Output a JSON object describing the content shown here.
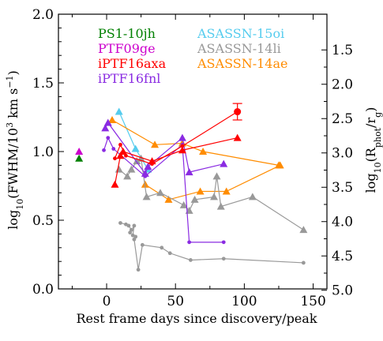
{
  "chart_data": {
    "type": "scatter",
    "xlabel": "Rest frame days since discovery/peak",
    "ylabel": "log10(FWHM/10^3 km s^-1)",
    "ylabel_right": "log10(R_phot/r_g)",
    "xlim": [
      -35,
      160
    ],
    "ylim": [
      0.0,
      2.0
    ],
    "x_ticks": [
      0,
      50,
      100,
      150
    ],
    "y_ticks": [
      0.0,
      0.5,
      1.0,
      1.5,
      2.0
    ],
    "y_tick_labels": [
      "0.0",
      "0.5",
      "1.0",
      "1.5",
      "2.0"
    ],
    "right_ticks": [
      {
        "y": 1.74,
        "label": "1.5"
      },
      {
        "y": 1.49,
        "label": "2.0"
      },
      {
        "y": 1.24,
        "label": "2.5"
      },
      {
        "y": 0.99,
        "label": "3.0"
      },
      {
        "y": 0.74,
        "label": "3.5"
      },
      {
        "y": 0.49,
        "label": "4.0"
      },
      {
        "y": 0.24,
        "label": "4.5"
      },
      {
        "y": -0.01,
        "label": "5.0"
      }
    ],
    "legend": [
      {
        "name": "PS1-10jh",
        "color": "#008000"
      },
      {
        "name": "PTF09ge",
        "color": "#cc00cc"
      },
      {
        "name": "iPTF16axa",
        "color": "#ff0000"
      },
      {
        "name": "iPTF16fnl",
        "color": "#8a2be2"
      },
      {
        "name": "ASASSN-15oi",
        "color": "#55ccee"
      },
      {
        "name": "ASASSN-14li",
        "color": "#999999"
      },
      {
        "name": "ASASSN-14ae",
        "color": "#ff8c00"
      }
    ],
    "series": [
      {
        "name": "PS1-10jh",
        "color": "#008000",
        "marker": "triangle",
        "connect": false,
        "points": [
          {
            "x": -20,
            "y": 0.95
          }
        ]
      },
      {
        "name": "PTF09ge",
        "color": "#cc00cc",
        "marker": "triangle",
        "connect": false,
        "points": [
          {
            "x": -20,
            "y": 1.0
          }
        ]
      },
      {
        "name": "ASASSN-15oi",
        "color": "#55ccee",
        "marker": "triangle",
        "connect": true,
        "points": [
          {
            "x": 9,
            "y": 1.29
          },
          {
            "x": 21,
            "y": 1.02
          },
          {
            "x": 30,
            "y": 0.87
          }
        ]
      },
      {
        "name": "ASASSN-14ae",
        "color": "#ff8c00",
        "marker": "triangle",
        "connect": true,
        "points": [
          {
            "x": 4,
            "y": 1.23
          },
          {
            "x": 35,
            "y": 1.05
          },
          {
            "x": 55,
            "y": 1.06
          },
          {
            "x": 70,
            "y": 1.0
          },
          {
            "x": 125,
            "y": 0.9
          }
        ]
      },
      {
        "name": "ASASSN-14ae (late)",
        "color": "#ff8c00",
        "marker": "triangle",
        "connect": true,
        "points": [
          {
            "x": 28,
            "y": 0.76
          },
          {
            "x": 45,
            "y": 0.65
          },
          {
            "x": 68,
            "y": 0.71
          },
          {
            "x": 87,
            "y": 0.71
          },
          {
            "x": 126,
            "y": 0.9
          }
        ]
      },
      {
        "name": "ASASSN-14li",
        "color": "#999999",
        "marker": "triangle",
        "connect": true,
        "points": [
          {
            "x": 9,
            "y": 0.87
          },
          {
            "x": 15,
            "y": 0.82
          },
          {
            "x": 18,
            "y": 0.87
          },
          {
            "x": 22,
            "y": 0.93
          },
          {
            "x": 25,
            "y": 0.95
          },
          {
            "x": 29,
            "y": 0.67
          },
          {
            "x": 39,
            "y": 0.7
          },
          {
            "x": 56,
            "y": 0.61
          },
          {
            "x": 60,
            "y": 0.57
          },
          {
            "x": 64,
            "y": 0.65
          },
          {
            "x": 78,
            "y": 0.67
          },
          {
            "x": 80,
            "y": 0.82
          },
          {
            "x": 83,
            "y": 0.6
          },
          {
            "x": 106,
            "y": 0.67
          },
          {
            "x": 143,
            "y": 0.43
          }
        ]
      },
      {
        "name": "ASASSN-14li (dots)",
        "color": "#999999",
        "marker": "dot",
        "connect": true,
        "points": [
          {
            "x": 10,
            "y": 0.48
          },
          {
            "x": 14,
            "y": 0.47
          },
          {
            "x": 16,
            "y": 0.46
          },
          {
            "x": 18,
            "y": 0.43
          },
          {
            "x": 17,
            "y": 0.41
          },
          {
            "x": 20,
            "y": 0.46
          },
          {
            "x": 19,
            "y": 0.39
          },
          {
            "x": 21,
            "y": 0.38
          },
          {
            "x": 20,
            "y": 0.36
          },
          {
            "x": 23,
            "y": 0.14
          },
          {
            "x": 26,
            "y": 0.32
          },
          {
            "x": 40,
            "y": 0.3
          },
          {
            "x": 46,
            "y": 0.26
          },
          {
            "x": 61,
            "y": 0.21
          },
          {
            "x": 85,
            "y": 0.22
          },
          {
            "x": 143,
            "y": 0.19
          }
        ]
      },
      {
        "name": "iPTF16fnl",
        "color": "#8a2be2",
        "marker": "triangle",
        "connect": true,
        "points": [
          {
            "x": -1,
            "y": 1.17
          },
          {
            "x": 1,
            "y": 1.21
          },
          {
            "x": 28,
            "y": 0.84
          },
          {
            "x": 30,
            "y": 0.89
          },
          {
            "x": 55,
            "y": 1.1
          },
          {
            "x": 60,
            "y": 0.85
          },
          {
            "x": 85,
            "y": 0.91
          }
        ]
      },
      {
        "name": "iPTF16fnl (dots)",
        "color": "#8a2be2",
        "marker": "dot",
        "connect": true,
        "points": [
          {
            "x": -2,
            "y": 1.01
          },
          {
            "x": 1,
            "y": 1.1
          },
          {
            "x": 5,
            "y": 1.02
          },
          {
            "x": 28,
            "y": 0.82
          },
          {
            "x": 55,
            "y": 1.05
          },
          {
            "x": 60,
            "y": 0.34
          },
          {
            "x": 85,
            "y": 0.34
          }
        ]
      },
      {
        "name": "iPTF16axa",
        "color": "#ff0000",
        "marker": "triangle",
        "connect": true,
        "points": [
          {
            "x": 6,
            "y": 0.76
          },
          {
            "x": 10,
            "y": 0.97
          },
          {
            "x": 12,
            "y": 1.0
          },
          {
            "x": 33,
            "y": 0.93
          },
          {
            "x": 55,
            "y": 1.01
          },
          {
            "x": 95,
            "y": 1.1
          }
        ]
      },
      {
        "name": "iPTF16axa (dots)",
        "color": "#ff0000",
        "marker": "dot",
        "connect": true,
        "points": [
          {
            "x": 6,
            "y": 0.95
          },
          {
            "x": 10,
            "y": 1.05
          },
          {
            "x": 14,
            "y": 0.97
          },
          {
            "x": 33,
            "y": 0.91
          },
          {
            "x": 55,
            "y": 1.04
          },
          {
            "x": 95,
            "y": 1.29,
            "err": 0.06
          }
        ]
      }
    ]
  }
}
